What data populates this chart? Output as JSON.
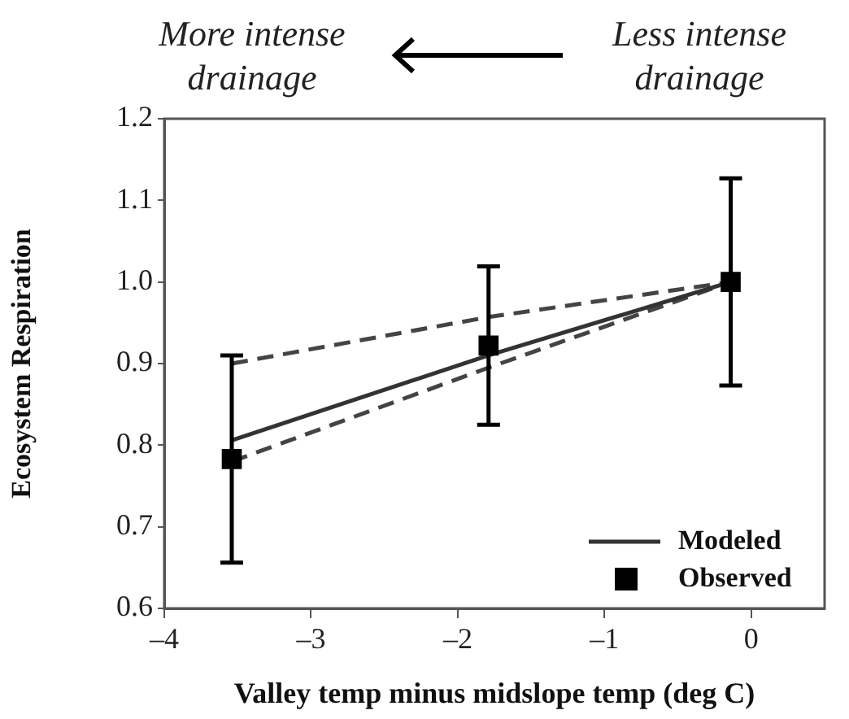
{
  "chart_data": {
    "type": "line",
    "xlabel": "Valley temp minus midslope temp (deg C)",
    "ylabel": "Ecosystem Respiration",
    "annotations": [
      "More intense drainage",
      "Less intense drainage"
    ],
    "xlim": [
      -4,
      0.5
    ],
    "xticks": [
      {
        "value": -4,
        "label": "–4"
      },
      {
        "value": -3,
        "label": "–3"
      },
      {
        "value": -2,
        "label": "–2"
      },
      {
        "value": -1,
        "label": "–1"
      },
      0
    ],
    "ylim": [
      0.6,
      1.2
    ],
    "yticks": [
      {
        "value": 0.6,
        "label": "0.6"
      },
      {
        "value": 0.7,
        "label": "0.7"
      },
      {
        "value": 0.8,
        "label": "0.8"
      },
      {
        "value": 0.9,
        "label": "0.9"
      },
      {
        "value": 1.0,
        "label": "1.0"
      },
      {
        "value": 1.1,
        "label": "1.1"
      },
      {
        "value": 1.2,
        "label": "1.2"
      }
    ],
    "grid": false,
    "legend": "bottom right",
    "series": [
      {
        "name": "Modeled",
        "type": "line",
        "color": "#333333",
        "line_style": "solid",
        "marker": "none",
        "x": [
          -3.54,
          -1.79,
          -0.14
        ],
        "values": [
          0.806,
          0.91,
          1.0
        ]
      },
      {
        "type": "line",
        "color": "#444444",
        "line_style": "dashed",
        "marker": "none",
        "x": [
          -3.54,
          -1.79,
          -0.14
        ],
        "values": [
          0.9,
          0.957,
          1.0
        ]
      },
      {
        "type": "line",
        "color": "#444444",
        "line_style": "dashed",
        "marker": "none",
        "x": [
          -3.54,
          -1.79,
          -0.14
        ],
        "values": [
          0.78,
          0.895,
          1.0
        ]
      },
      {
        "name": "Observed",
        "type": "scatter",
        "color": "#000000",
        "marker": "square",
        "x": [
          -3.54,
          -1.79,
          -0.14
        ],
        "values": [
          0.783,
          0.922,
          1.0
        ],
        "errors": [
          0.127,
          0.097,
          0.127
        ]
      }
    ]
  }
}
